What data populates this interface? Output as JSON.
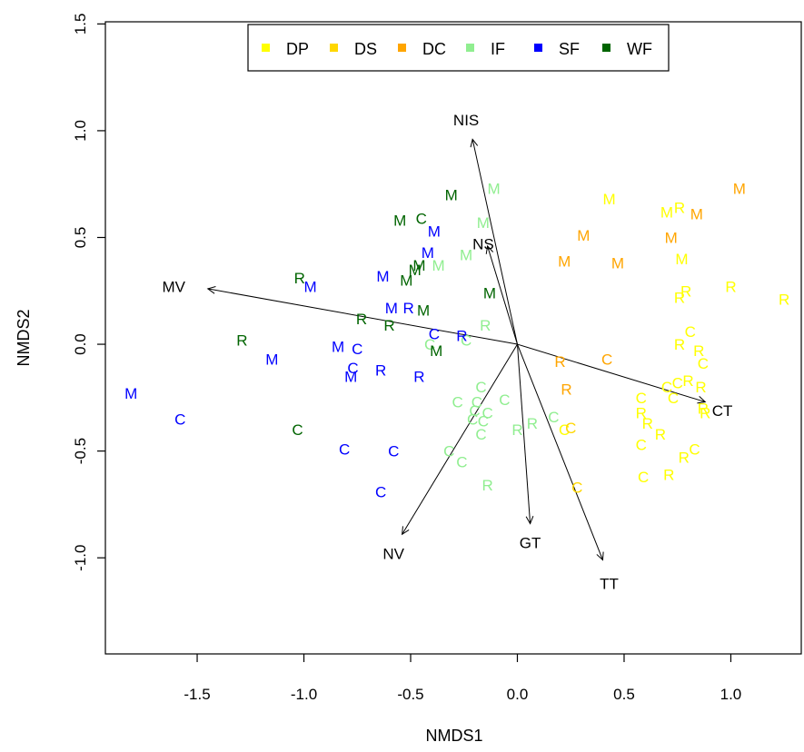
{
  "chart_data": {
    "type": "scatter",
    "title": "",
    "xlabel": "NMDS1",
    "ylabel": "NMDS2",
    "xlim": [
      -1.93,
      1.33
    ],
    "ylim": [
      -1.45,
      1.51
    ],
    "xticks": [
      "-1.5",
      "-1.0",
      "-0.5",
      "0.0",
      "0.5",
      "1.0"
    ],
    "xtick_values": [
      -1.5,
      -1.0,
      -0.5,
      0.0,
      0.5,
      1.0
    ],
    "yticks": [
      "-1.0",
      "-0.5",
      "0.0",
      "0.5",
      "1.0",
      "1.5"
    ],
    "ytick_values": [
      -1.0,
      -0.5,
      0.0,
      0.5,
      1.0,
      1.5
    ],
    "grid": false,
    "legend": {
      "position": "top",
      "items": [
        {
          "label": "DP",
          "color": "#ffff00"
        },
        {
          "label": "DS",
          "color": "#ffd700"
        },
        {
          "label": "DC",
          "color": "#ffa500"
        },
        {
          "label": "IF",
          "color": "#90ee90"
        },
        {
          "label": "SF",
          "color": "#0000ff"
        },
        {
          "label": "WF",
          "color": "#006400"
        }
      ]
    },
    "vectors": [
      {
        "label": "NIS",
        "x": -0.21,
        "y": 0.96
      },
      {
        "label": "NS",
        "x": -0.14,
        "y": 0.46
      },
      {
        "label": "MV",
        "x": -1.45,
        "y": 0.26
      },
      {
        "label": "CT",
        "x": 0.88,
        "y": -0.27
      },
      {
        "label": "NV",
        "x": -0.54,
        "y": -0.89
      },
      {
        "label": "GT",
        "x": 0.06,
        "y": -0.84
      },
      {
        "label": "TT",
        "x": 0.4,
        "y": -1.01
      }
    ],
    "vector_label_positions": [
      {
        "label": "NIS",
        "x": -0.24,
        "y": 1.05
      },
      {
        "label": "NS",
        "x": -0.16,
        "y": 0.47
      },
      {
        "label": "MV",
        "x": -1.61,
        "y": 0.27
      },
      {
        "label": "CT",
        "x": 0.96,
        "y": -0.31
      },
      {
        "label": "NV",
        "x": -0.58,
        "y": -0.98
      },
      {
        "label": "GT",
        "x": 0.06,
        "y": -0.93
      },
      {
        "label": "TT",
        "x": 0.43,
        "y": -1.12
      }
    ],
    "series": [
      {
        "name": "DP",
        "color": "#ffff00",
        "points": [
          {
            "x": 0.43,
            "y": 0.68,
            "label": "M"
          },
          {
            "x": 0.7,
            "y": 0.62,
            "label": "M"
          },
          {
            "x": 0.76,
            "y": 0.64,
            "label": "R"
          },
          {
            "x": 0.77,
            "y": 0.4,
            "label": "M"
          },
          {
            "x": 0.76,
            "y": 0.22,
            "label": "R"
          },
          {
            "x": 0.79,
            "y": 0.25,
            "label": "R"
          },
          {
            "x": 1.0,
            "y": 0.27,
            "label": "R"
          },
          {
            "x": 1.25,
            "y": 0.21,
            "label": "R"
          },
          {
            "x": 0.81,
            "y": 0.06,
            "label": "C"
          },
          {
            "x": 0.76,
            "y": 0.0,
            "label": "R"
          },
          {
            "x": 0.85,
            "y": -0.03,
            "label": "R"
          },
          {
            "x": 0.87,
            "y": -0.09,
            "label": "C"
          },
          {
            "x": 0.8,
            "y": -0.17,
            "label": "R"
          },
          {
            "x": 0.75,
            "y": -0.18,
            "label": "C"
          },
          {
            "x": 0.7,
            "y": -0.2,
            "label": "C"
          },
          {
            "x": 0.86,
            "y": -0.2,
            "label": "R"
          },
          {
            "x": 0.73,
            "y": -0.25,
            "label": "C"
          },
          {
            "x": 0.58,
            "y": -0.25,
            "label": "C"
          },
          {
            "x": 0.87,
            "y": -0.3,
            "label": "R"
          },
          {
            "x": 0.88,
            "y": -0.32,
            "label": "R"
          },
          {
            "x": 0.58,
            "y": -0.32,
            "label": "R"
          },
          {
            "x": 0.61,
            "y": -0.37,
            "label": "R"
          },
          {
            "x": 0.67,
            "y": -0.42,
            "label": "R"
          },
          {
            "x": 0.58,
            "y": -0.47,
            "label": "C"
          },
          {
            "x": 0.83,
            "y": -0.49,
            "label": "C"
          },
          {
            "x": 0.78,
            "y": -0.53,
            "label": "R"
          },
          {
            "x": 0.71,
            "y": -0.61,
            "label": "R"
          },
          {
            "x": 0.59,
            "y": -0.62,
            "label": "C"
          },
          {
            "x": 0.22,
            "y": -0.4,
            "label": "C"
          }
        ]
      },
      {
        "name": "DS",
        "color": "#ffd700",
        "points": [
          {
            "x": 0.25,
            "y": -0.39,
            "label": "C"
          },
          {
            "x": 0.28,
            "y": -0.67,
            "label": "C"
          }
        ]
      },
      {
        "name": "DC",
        "color": "#ffa500",
        "points": [
          {
            "x": 1.04,
            "y": 0.73,
            "label": "M"
          },
          {
            "x": 0.84,
            "y": 0.61,
            "label": "M"
          },
          {
            "x": 0.31,
            "y": 0.51,
            "label": "M"
          },
          {
            "x": 0.72,
            "y": 0.5,
            "label": "M"
          },
          {
            "x": 0.22,
            "y": 0.39,
            "label": "M"
          },
          {
            "x": 0.47,
            "y": 0.38,
            "label": "M"
          },
          {
            "x": 0.42,
            "y": -0.07,
            "label": "C"
          },
          {
            "x": 0.2,
            "y": -0.08,
            "label": "R"
          },
          {
            "x": 0.23,
            "y": -0.21,
            "label": "R"
          }
        ]
      },
      {
        "name": "IF",
        "color": "#90ee90",
        "points": [
          {
            "x": -0.11,
            "y": 0.73,
            "label": "M"
          },
          {
            "x": -0.16,
            "y": 0.57,
            "label": "M"
          },
          {
            "x": -0.37,
            "y": 0.37,
            "label": "M"
          },
          {
            "x": -0.24,
            "y": 0.42,
            "label": "M"
          },
          {
            "x": -0.15,
            "y": 0.09,
            "label": "R"
          },
          {
            "x": -0.24,
            "y": 0.02,
            "label": "C"
          },
          {
            "x": -0.41,
            "y": 0.0,
            "label": "C"
          },
          {
            "x": -0.17,
            "y": -0.2,
            "label": "C"
          },
          {
            "x": -0.06,
            "y": -0.26,
            "label": "C"
          },
          {
            "x": -0.28,
            "y": -0.27,
            "label": "C"
          },
          {
            "x": -0.19,
            "y": -0.27,
            "label": "C"
          },
          {
            "x": -0.2,
            "y": -0.31,
            "label": "C"
          },
          {
            "x": -0.14,
            "y": -0.32,
            "label": "C"
          },
          {
            "x": -0.21,
            "y": -0.35,
            "label": "C"
          },
          {
            "x": -0.16,
            "y": -0.36,
            "label": "C"
          },
          {
            "x": 0.17,
            "y": -0.34,
            "label": "C"
          },
          {
            "x": 0.07,
            "y": -0.37,
            "label": "R"
          },
          {
            "x": 0.0,
            "y": -0.4,
            "label": "R"
          },
          {
            "x": -0.17,
            "y": -0.42,
            "label": "C"
          },
          {
            "x": -0.32,
            "y": -0.5,
            "label": "C"
          },
          {
            "x": -0.26,
            "y": -0.55,
            "label": "C"
          },
          {
            "x": -0.14,
            "y": -0.66,
            "label": "R"
          }
        ]
      },
      {
        "name": "SF",
        "color": "#0000ff",
        "points": [
          {
            "x": -0.39,
            "y": 0.53,
            "label": "M"
          },
          {
            "x": -0.42,
            "y": 0.43,
            "label": "M"
          },
          {
            "x": -0.63,
            "y": 0.32,
            "label": "M"
          },
          {
            "x": -0.97,
            "y": 0.27,
            "label": "M"
          },
          {
            "x": -0.59,
            "y": 0.17,
            "label": "M"
          },
          {
            "x": -0.51,
            "y": 0.17,
            "label": "R"
          },
          {
            "x": -0.39,
            "y": 0.05,
            "label": "C"
          },
          {
            "x": -0.26,
            "y": 0.04,
            "label": "R"
          },
          {
            "x": -0.84,
            "y": -0.01,
            "label": "M"
          },
          {
            "x": -0.75,
            "y": -0.02,
            "label": "C"
          },
          {
            "x": -1.15,
            "y": -0.07,
            "label": "M"
          },
          {
            "x": -0.77,
            "y": -0.11,
            "label": "C"
          },
          {
            "x": -0.64,
            "y": -0.12,
            "label": "R"
          },
          {
            "x": -0.78,
            "y": -0.15,
            "label": "M"
          },
          {
            "x": -0.46,
            "y": -0.15,
            "label": "R"
          },
          {
            "x": -1.81,
            "y": -0.23,
            "label": "M"
          },
          {
            "x": -1.58,
            "y": -0.35,
            "label": "C"
          },
          {
            "x": -0.81,
            "y": -0.49,
            "label": "C"
          },
          {
            "x": -0.58,
            "y": -0.5,
            "label": "C"
          },
          {
            "x": -0.64,
            "y": -0.69,
            "label": "C"
          }
        ]
      },
      {
        "name": "WF",
        "color": "#006400",
        "points": [
          {
            "x": -0.31,
            "y": 0.7,
            "label": "M"
          },
          {
            "x": -0.55,
            "y": 0.58,
            "label": "M"
          },
          {
            "x": -0.45,
            "y": 0.59,
            "label": "C"
          },
          {
            "x": -0.46,
            "y": 0.37,
            "label": "M"
          },
          {
            "x": -0.48,
            "y": 0.35,
            "label": "M"
          },
          {
            "x": -0.52,
            "y": 0.3,
            "label": "M"
          },
          {
            "x": -1.02,
            "y": 0.31,
            "label": "R"
          },
          {
            "x": -0.13,
            "y": 0.24,
            "label": "M"
          },
          {
            "x": -0.44,
            "y": 0.16,
            "label": "M"
          },
          {
            "x": -0.73,
            "y": 0.12,
            "label": "R"
          },
          {
            "x": -0.6,
            "y": 0.09,
            "label": "R"
          },
          {
            "x": -1.29,
            "y": 0.02,
            "label": "R"
          },
          {
            "x": -0.38,
            "y": -0.03,
            "label": "M"
          },
          {
            "x": -1.03,
            "y": -0.4,
            "label": "C"
          }
        ]
      }
    ]
  }
}
